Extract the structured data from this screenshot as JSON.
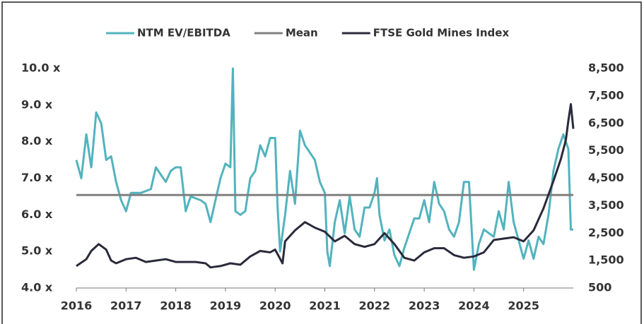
{
  "chart_data": {
    "type": "line",
    "xlim": [
      2016,
      2026
    ],
    "xticks": [
      2016,
      2017,
      2018,
      2019,
      2020,
      2021,
      2022,
      2023,
      2024,
      2025
    ],
    "ylim": [
      4,
      10
    ],
    "yticks": [
      {
        "value": 4,
        "label": "4.0 x"
      },
      {
        "value": 5,
        "label": "5.0 x"
      },
      {
        "value": 6,
        "label": "6.0 x"
      },
      {
        "value": 7,
        "label": "7.0 x"
      },
      {
        "value": 8,
        "label": "8.0 x"
      },
      {
        "value": 9,
        "label": "9.0 x"
      },
      {
        "value": 10,
        "label": "10.0 x"
      }
    ],
    "y2lim": [
      500,
      8500
    ],
    "y2ticks": [
      500,
      {
        "value": 1500,
        "label": "1,500"
      },
      {
        "value": 2500,
        "label": "2,500"
      },
      {
        "value": 3500,
        "label": "3,500"
      },
      {
        "value": 4500,
        "label": "4,500"
      },
      {
        "value": 5500,
        "label": "5,500"
      },
      {
        "value": 6500,
        "label": "6,500"
      },
      {
        "value": 7500,
        "label": "7,500"
      },
      {
        "value": 8500,
        "label": "8,500"
      }
    ],
    "series": [
      {
        "name": "NTM EV/EBITDA",
        "color": "#52b3bd",
        "x": [
          2016.0,
          2016.1,
          2016.2,
          2016.3,
          2016.4,
          2016.5,
          2016.6,
          2016.7,
          2016.8,
          2016.9,
          2017.0,
          2017.1,
          2017.3,
          2017.5,
          2017.6,
          2017.8,
          2017.9,
          2018.0,
          2018.1,
          2018.2,
          2018.3,
          2018.5,
          2018.6,
          2018.7,
          2018.8,
          2018.9,
          2019.0,
          2019.1,
          2019.15,
          2019.2,
          2019.3,
          2019.4,
          2019.5,
          2019.6,
          2019.7,
          2019.8,
          2019.9,
          2020.0,
          2020.05,
          2020.1,
          2020.2,
          2020.3,
          2020.4,
          2020.5,
          2020.6,
          2020.7,
          2020.8,
          2020.9,
          2021.0,
          2021.05,
          2021.1,
          2021.2,
          2021.3,
          2021.4,
          2021.5,
          2021.6,
          2021.7,
          2021.8,
          2021.9,
          2022.0,
          2022.05,
          2022.1,
          2022.2,
          2022.3,
          2022.4,
          2022.5,
          2022.6,
          2022.7,
          2022.8,
          2022.9,
          2023.0,
          2023.1,
          2023.2,
          2023.3,
          2023.4,
          2023.5,
          2023.6,
          2023.7,
          2023.8,
          2023.9,
          2024.0,
          2024.1,
          2024.2,
          2024.3,
          2024.4,
          2024.5,
          2024.6,
          2024.7,
          2024.8,
          2024.9,
          2025.0,
          2025.1,
          2025.2,
          2025.3,
          2025.4,
          2025.5,
          2025.6,
          2025.7,
          2025.8,
          2025.9,
          2025.95,
          2026.0
        ],
        "values": [
          7.5,
          7.0,
          8.2,
          7.3,
          8.8,
          8.5,
          7.5,
          7.6,
          6.9,
          6.4,
          6.1,
          6.6,
          6.6,
          6.7,
          7.3,
          6.9,
          7.2,
          7.3,
          7.3,
          6.1,
          6.5,
          6.4,
          6.3,
          5.8,
          6.4,
          7.0,
          7.4,
          7.3,
          10.0,
          6.1,
          6.0,
          6.1,
          7.0,
          7.2,
          7.9,
          7.6,
          8.1,
          8.1,
          6.2,
          5.0,
          6.0,
          7.2,
          6.3,
          8.3,
          7.9,
          7.7,
          7.5,
          6.9,
          6.6,
          5.0,
          4.6,
          5.8,
          6.4,
          5.5,
          6.5,
          5.6,
          5.4,
          6.2,
          6.2,
          6.6,
          7.0,
          6.0,
          5.3,
          5.6,
          4.9,
          4.6,
          5.1,
          5.5,
          5.9,
          5.9,
          6.4,
          5.8,
          6.9,
          6.3,
          6.1,
          5.6,
          5.4,
          5.8,
          6.9,
          6.9,
          4.5,
          5.2,
          5.6,
          5.5,
          5.4,
          6.1,
          5.6,
          6.9,
          5.8,
          5.3,
          4.8,
          5.3,
          4.8,
          5.4,
          5.2,
          6.0,
          7.2,
          7.8,
          8.2,
          7.8,
          5.6,
          5.6
        ]
      },
      {
        "name": "Mean",
        "color": "#808080",
        "x": [
          2016,
          2026
        ],
        "values": [
          6.54,
          6.54
        ]
      },
      {
        "name": "FTSE Gold Mines Index",
        "color": "#2a2a3c",
        "axis": "y2",
        "x": [
          2016.0,
          2016.2,
          2016.3,
          2016.45,
          2016.6,
          2016.7,
          2016.8,
          2017.0,
          2017.2,
          2017.4,
          2017.6,
          2017.8,
          2018.0,
          2018.2,
          2018.4,
          2018.6,
          2018.7,
          2018.9,
          2019.1,
          2019.3,
          2019.5,
          2019.7,
          2019.9,
          2020.0,
          2020.15,
          2020.2,
          2020.4,
          2020.6,
          2020.8,
          2021.0,
          2021.2,
          2021.4,
          2021.6,
          2021.8,
          2022.0,
          2022.2,
          2022.4,
          2022.6,
          2022.8,
          2023.0,
          2023.2,
          2023.4,
          2023.6,
          2023.8,
          2024.0,
          2024.2,
          2024.4,
          2024.6,
          2024.8,
          2025.0,
          2025.2,
          2025.4,
          2025.6,
          2025.75,
          2025.85,
          2025.9,
          2025.95,
          2026.0
        ],
        "values": [
          1300,
          1550,
          1850,
          2100,
          1900,
          1500,
          1400,
          1550,
          1600,
          1450,
          1500,
          1550,
          1450,
          1450,
          1450,
          1400,
          1250,
          1300,
          1400,
          1350,
          1650,
          1850,
          1800,
          1900,
          1400,
          2200,
          2600,
          2900,
          2700,
          2550,
          2200,
          2400,
          2100,
          2000,
          2100,
          2500,
          2100,
          1600,
          1500,
          1800,
          1950,
          1950,
          1700,
          1600,
          1650,
          1800,
          2250,
          2300,
          2350,
          2200,
          2600,
          3400,
          4400,
          5200,
          5900,
          6600,
          7200,
          6300
        ]
      }
    ]
  }
}
